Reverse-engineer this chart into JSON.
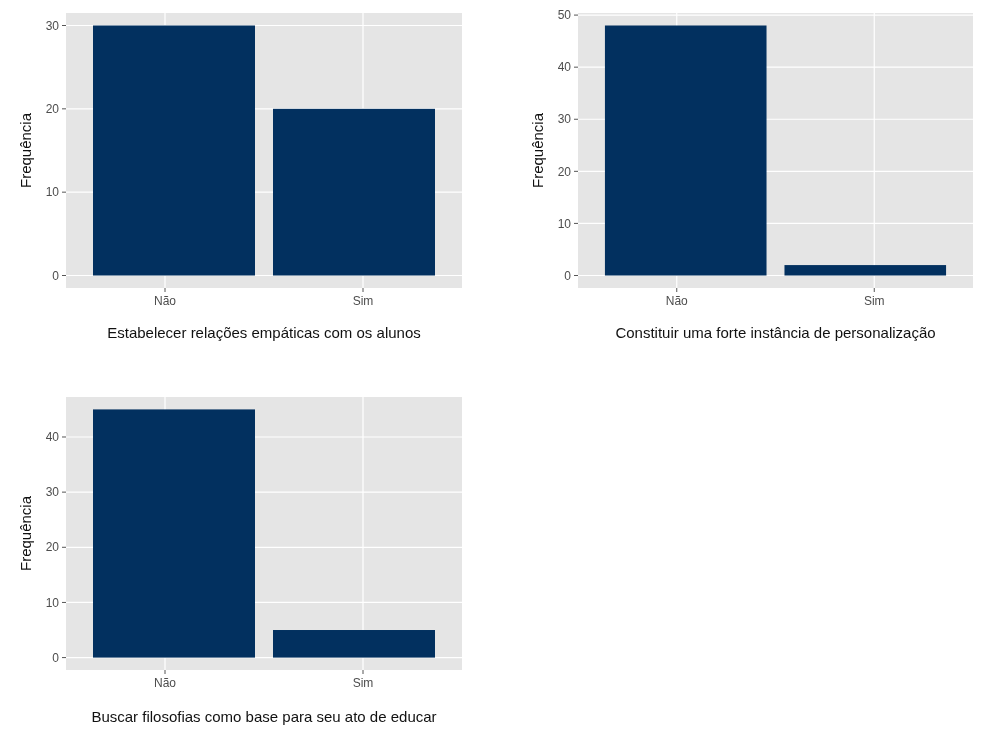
{
  "chart_data": [
    {
      "type": "bar",
      "xlabel": "Estabelecer relações empáticas com os alunos",
      "ylabel": "Frequência",
      "categories": [
        "Não",
        "Sim"
      ],
      "values": [
        30,
        20
      ],
      "color": "#02305f",
      "ylim": [
        -1.5,
        31.5
      ],
      "yticks": [
        0,
        10,
        20,
        30
      ],
      "grid": true
    },
    {
      "type": "bar",
      "xlabel": "Constituir uma forte instância de personalização",
      "ylabel": "Frequência",
      "categories": [
        "Não",
        "Sim"
      ],
      "values": [
        48,
        2
      ],
      "color": "#02305f",
      "ylim": [
        -2.4,
        50.4
      ],
      "yticks": [
        0,
        10,
        20,
        30,
        40,
        50
      ],
      "grid": true
    },
    {
      "type": "bar",
      "xlabel": "Buscar filosofias como base para seu ato de educar",
      "ylabel": "Frequência",
      "categories": [
        "Não",
        "Sim"
      ],
      "values": [
        45,
        5
      ],
      "color": "#02305f",
      "ylim": [
        -2.25,
        47.25
      ],
      "yticks": [
        0,
        10,
        20,
        30,
        40
      ],
      "grid": true
    }
  ]
}
